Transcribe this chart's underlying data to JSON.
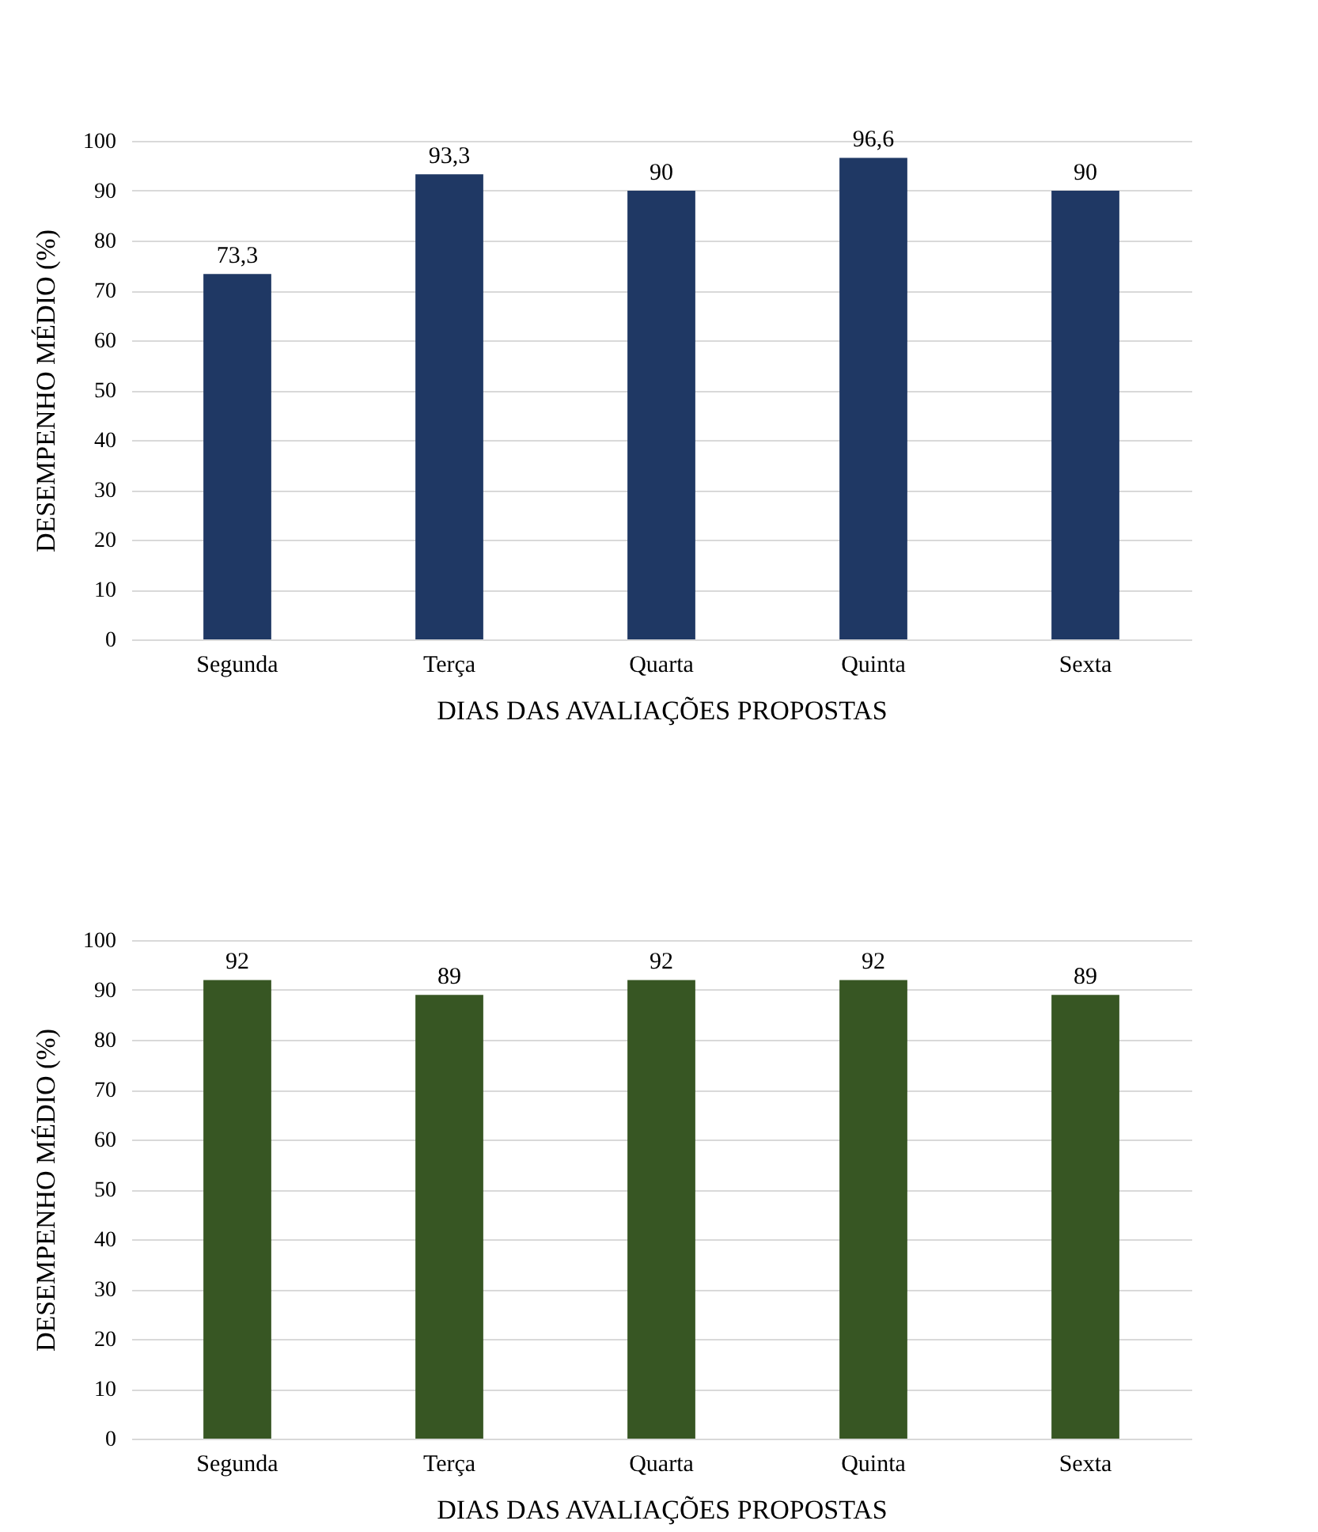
{
  "chart_data": [
    {
      "type": "bar",
      "xlabel": "DIAS DAS AVALIAÇÕES PROPOSTAS",
      "ylabel": "DESEMPENHO MÉDIO (%)",
      "categories": [
        "Segunda",
        "Terça",
        "Quarta",
        "Quinta",
        "Sexta"
      ],
      "values": [
        73.3,
        93.3,
        90,
        96.6,
        90
      ],
      "value_labels": [
        "73,3",
        "93,3",
        "90",
        "96,6",
        "90"
      ],
      "color": "#1f3864",
      "ylim": [
        0,
        100
      ],
      "yticks": [
        0,
        10,
        20,
        30,
        40,
        50,
        60,
        70,
        80,
        90,
        100
      ],
      "grid": "y"
    },
    {
      "type": "bar",
      "xlabel": "DIAS DAS AVALIAÇÕES PROPOSTAS",
      "ylabel": "DESEMPENHO MÉDIO (%)",
      "categories": [
        "Segunda",
        "Terça",
        "Quarta",
        "Quinta",
        "Sexta"
      ],
      "values": [
        92,
        89,
        92,
        92,
        89
      ],
      "data_labels": true,
      "color": "#375623",
      "ylim": [
        0,
        100
      ],
      "yticks": [
        0,
        10,
        20,
        30,
        40,
        50,
        60,
        70,
        80,
        90,
        100
      ],
      "grid": "y"
    }
  ]
}
